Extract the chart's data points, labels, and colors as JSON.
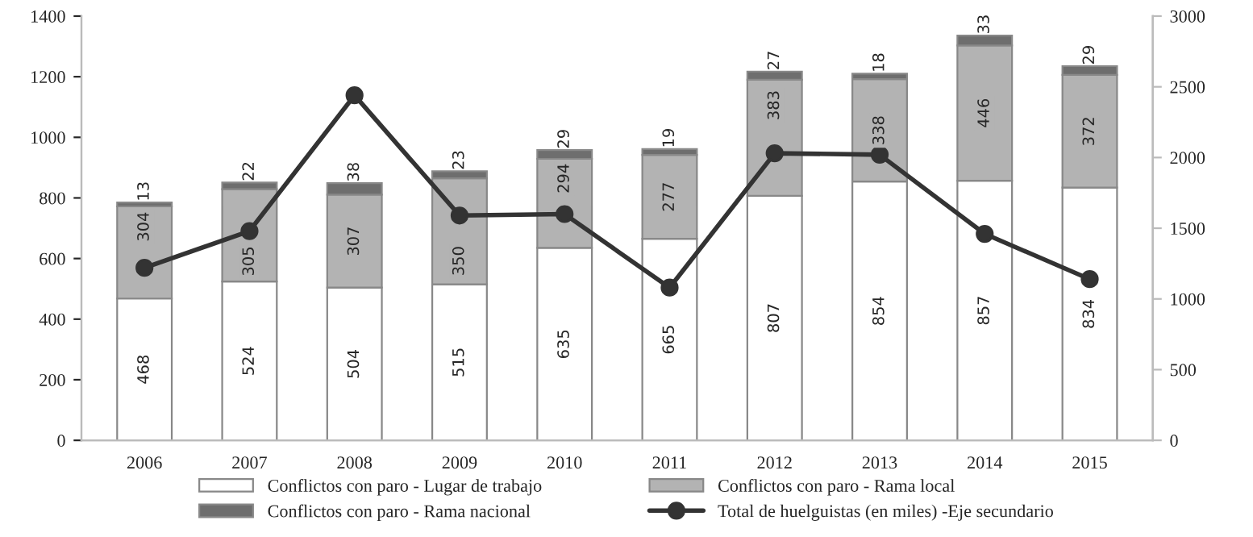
{
  "chart_data": {
    "type": "bar",
    "stacked": true,
    "categories": [
      "2006",
      "2007",
      "2008",
      "2009",
      "2010",
      "2011",
      "2012",
      "2013",
      "2014",
      "2015"
    ],
    "series": [
      {
        "name": "Conflictos con paro - Lugar de trabajo",
        "color": "#ffffff",
        "values": [
          468,
          524,
          504,
          515,
          635,
          665,
          807,
          854,
          857,
          834
        ],
        "value_labels": [
          "468",
          "524",
          "504",
          "515",
          "635",
          "665",
          "807",
          "854",
          "857",
          "834"
        ]
      },
      {
        "name": "Conflictos con paro - Rama local",
        "color": "#b3b3b3",
        "values": [
          304,
          305,
          307,
          350,
          294,
          277,
          383,
          338,
          446,
          372
        ],
        "value_labels": [
          "304",
          "305",
          "307",
          "350",
          "294",
          "277",
          "383",
          "338",
          "446",
          "372"
        ]
      },
      {
        "name": "Conflictos con paro - Rama nacional",
        "color": "#6e6e6e",
        "values": [
          13,
          22,
          38,
          23,
          29,
          19,
          27,
          18,
          33,
          29
        ],
        "value_labels": [
          "13",
          "22",
          "38",
          "23",
          "29",
          "19",
          "27",
          "18",
          "33",
          "29"
        ]
      },
      {
        "name": "Total de huelguistas (en miles) -Eje secundario",
        "type": "line",
        "axis": "y2",
        "color": "#333333",
        "values": [
          1220,
          1480,
          2440,
          1590,
          1600,
          1080,
          2030,
          2020,
          1460,
          1140
        ]
      }
    ],
    "ylim": [
      0,
      1400
    ],
    "yticks": [
      0,
      200,
      400,
      600,
      800,
      1000,
      1200,
      1400
    ],
    "y2lim": [
      0,
      3000
    ],
    "y2ticks": [
      0,
      500,
      1000,
      1500,
      2000,
      2500,
      3000
    ],
    "marker": "circle",
    "line_style": "solid",
    "grid": false,
    "legend": "bottom"
  }
}
